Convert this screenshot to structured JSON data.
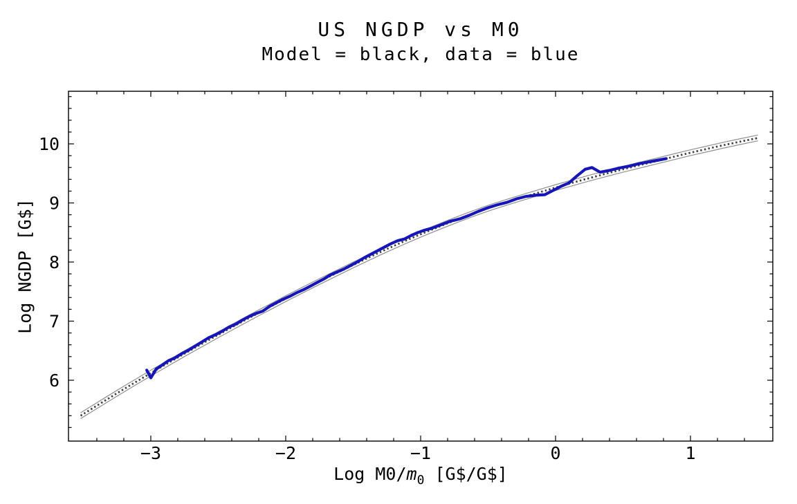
{
  "title": {
    "line1": "US NGDP vs M0",
    "line2": "Model = black, data = blue"
  },
  "axis_labels": {
    "x_prefix": "Log M0/",
    "x_var": "m",
    "x_var_sub": "0",
    "x_suffix": " [G$/G$]",
    "y": "Log NGDP [G$]"
  },
  "colors": {
    "background": "#ffffff",
    "frame": "#000000",
    "text": "#000000",
    "data_blue": "#1515b8",
    "model_band_edge": "#8f8f8f",
    "model_center_dotted": "#3f3f3f"
  },
  "chart_data": {
    "type": "line",
    "title": "US NGDP vs M0",
    "subtitle": "Model = black, data = blue",
    "xlabel": "Log M0/m0 [G$/G$]",
    "ylabel": "Log NGDP [G$]",
    "xlim": [
      -3.61,
      1.61
    ],
    "ylim": [
      4.97,
      10.89
    ],
    "grid": false,
    "legend": "none (described in subtitle: model = black, data = blue)",
    "x_ticks": {
      "values": [
        -3,
        -2,
        -1,
        0,
        1
      ],
      "labels": [
        "−3",
        "−2",
        "−1",
        "0",
        "1"
      ]
    },
    "y_ticks": {
      "values": [
        6,
        7,
        8,
        9,
        10
      ],
      "labels": [
        "6",
        "7",
        "8",
        "9",
        "10"
      ]
    },
    "minor_tick_step": 0.2,
    "series": [
      {
        "name": "model",
        "style": "gray band with dark dotted centerline",
        "color": "#3f3f3f",
        "points": [
          [
            -3.52,
            5.4
          ],
          [
            -3.25,
            5.78
          ],
          [
            -3.0,
            6.12
          ],
          [
            -2.75,
            6.45
          ],
          [
            -2.5,
            6.77
          ],
          [
            -2.25,
            7.08
          ],
          [
            -2.0,
            7.38
          ],
          [
            -1.75,
            7.67
          ],
          [
            -1.5,
            7.95
          ],
          [
            -1.25,
            8.22
          ],
          [
            -1.0,
            8.47
          ],
          [
            -0.75,
            8.7
          ],
          [
            -0.5,
            8.91
          ],
          [
            -0.25,
            9.09
          ],
          [
            0.0,
            9.26
          ],
          [
            0.25,
            9.42
          ],
          [
            0.5,
            9.57
          ],
          [
            0.75,
            9.71
          ],
          [
            1.0,
            9.85
          ],
          [
            1.25,
            9.98
          ],
          [
            1.5,
            10.1
          ]
        ]
      },
      {
        "name": "data",
        "style": "thick solid wiggly line",
        "color": "#1515b8",
        "points": [
          [
            -3.03,
            6.17
          ],
          [
            -3.0,
            6.04
          ],
          [
            -2.96,
            6.19
          ],
          [
            -2.92,
            6.25
          ],
          [
            -2.87,
            6.33
          ],
          [
            -2.82,
            6.38
          ],
          [
            -2.77,
            6.45
          ],
          [
            -2.72,
            6.51
          ],
          [
            -2.67,
            6.58
          ],
          [
            -2.62,
            6.65
          ],
          [
            -2.57,
            6.72
          ],
          [
            -2.52,
            6.77
          ],
          [
            -2.47,
            6.83
          ],
          [
            -2.42,
            6.9
          ],
          [
            -2.37,
            6.95
          ],
          [
            -2.32,
            7.02
          ],
          [
            -2.27,
            7.08
          ],
          [
            -2.22,
            7.13
          ],
          [
            -2.17,
            7.17
          ],
          [
            -2.12,
            7.25
          ],
          [
            -2.07,
            7.31
          ],
          [
            -2.02,
            7.37
          ],
          [
            -1.97,
            7.42
          ],
          [
            -1.92,
            7.48
          ],
          [
            -1.87,
            7.53
          ],
          [
            -1.82,
            7.59
          ],
          [
            -1.77,
            7.65
          ],
          [
            -1.72,
            7.71
          ],
          [
            -1.67,
            7.78
          ],
          [
            -1.62,
            7.83
          ],
          [
            -1.57,
            7.88
          ],
          [
            -1.52,
            7.94
          ],
          [
            -1.47,
            8.0
          ],
          [
            -1.42,
            8.07
          ],
          [
            -1.37,
            8.13
          ],
          [
            -1.32,
            8.19
          ],
          [
            -1.27,
            8.25
          ],
          [
            -1.22,
            8.31
          ],
          [
            -1.17,
            8.36
          ],
          [
            -1.12,
            8.39
          ],
          [
            -1.07,
            8.45
          ],
          [
            -1.02,
            8.5
          ],
          [
            -0.97,
            8.54
          ],
          [
            -0.92,
            8.57
          ],
          [
            -0.85,
            8.63
          ],
          [
            -0.78,
            8.69
          ],
          [
            -0.71,
            8.73
          ],
          [
            -0.64,
            8.79
          ],
          [
            -0.57,
            8.86
          ],
          [
            -0.5,
            8.92
          ],
          [
            -0.43,
            8.97
          ],
          [
            -0.36,
            9.01
          ],
          [
            -0.29,
            9.07
          ],
          [
            -0.22,
            9.11
          ],
          [
            -0.15,
            9.13
          ],
          [
            -0.08,
            9.14
          ],
          [
            -0.02,
            9.21
          ],
          [
            0.04,
            9.28
          ],
          [
            0.1,
            9.34
          ],
          [
            0.16,
            9.46
          ],
          [
            0.22,
            9.57
          ],
          [
            0.27,
            9.6
          ],
          [
            0.33,
            9.52
          ],
          [
            0.4,
            9.55
          ],
          [
            0.47,
            9.59
          ],
          [
            0.54,
            9.62
          ],
          [
            0.61,
            9.66
          ],
          [
            0.68,
            9.69
          ],
          [
            0.75,
            9.72
          ],
          [
            0.82,
            9.75
          ]
        ]
      }
    ]
  }
}
